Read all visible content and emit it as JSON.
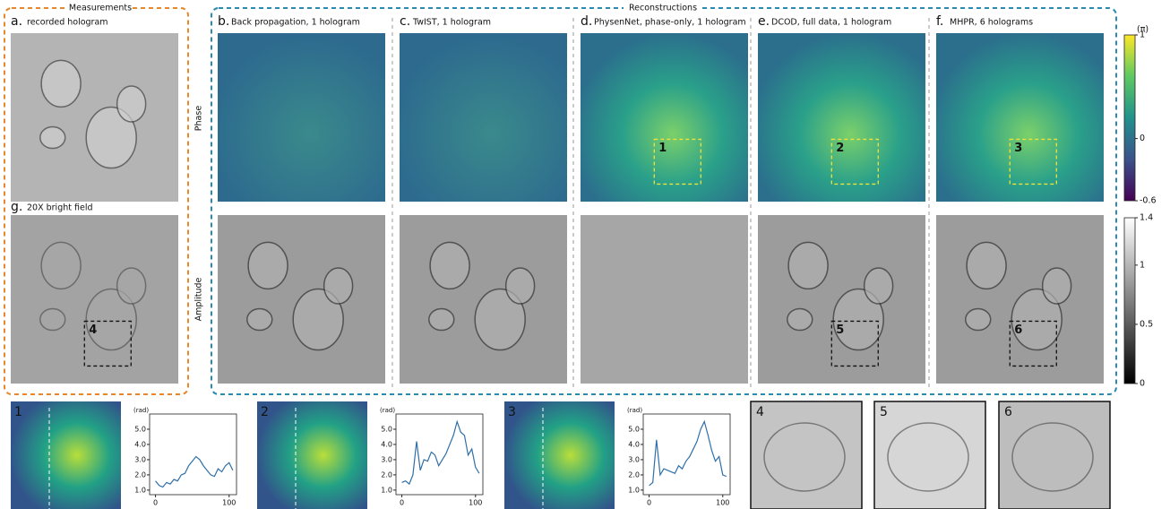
{
  "measurements": {
    "title": "Measurements",
    "panels": [
      {
        "label": "a.",
        "caption": "recorded hologram"
      },
      {
        "label": "g.",
        "caption": "20X bright field",
        "box": "4"
      }
    ]
  },
  "reconstructions": {
    "title": "Reconstructions",
    "row_labels": [
      "Phase",
      "Amplitude"
    ],
    "columns": [
      {
        "label": "b.",
        "caption": "Back propagation, 1 hologram"
      },
      {
        "label": "c.",
        "caption": "TwIST, 1 hologram"
      },
      {
        "label": "d.",
        "caption": "PhysenNet, phase-only, 1 hologram",
        "phase_box": "1"
      },
      {
        "label": "e.",
        "caption": "DCOD, full data, 1 hologram",
        "phase_box": "2",
        "amplitude_box": "5"
      },
      {
        "label": "f.",
        "caption": "MHPR, 6 holograms",
        "phase_box": "3",
        "amplitude_box": "6"
      }
    ]
  },
  "colorbars": [
    {
      "unit": "(π)",
      "lim": [
        -0.6,
        1
      ],
      "ticks": [
        1,
        0,
        -0.6
      ]
    },
    {
      "lim": [
        0,
        1.4
      ],
      "ticks": [
        1.4,
        1,
        0.5,
        0
      ]
    }
  ],
  "profile_insets": [
    {
      "label": "1",
      "chart_data": {
        "type": "line",
        "y_label": "(rad)",
        "xlim": [
          -8,
          110
        ],
        "xticks": [
          0,
          100
        ],
        "ylim": [
          0.7,
          6.0
        ],
        "yticks": [
          {
            "value": 1,
            "label": "1.0"
          },
          {
            "value": 2,
            "label": "2.0"
          },
          {
            "value": 3,
            "label": "3.0"
          },
          {
            "value": 4,
            "label": "4.0"
          },
          {
            "value": 5,
            "label": "5.0"
          }
        ],
        "color": "#2f6fa8",
        "x": [
          0,
          5,
          10,
          15,
          20,
          25,
          30,
          35,
          40,
          45,
          50,
          55,
          60,
          65,
          70,
          75,
          80,
          85,
          90,
          95,
          100,
          105
        ],
        "values": [
          1.6,
          1.3,
          1.2,
          1.5,
          1.4,
          1.7,
          1.6,
          2.0,
          2.1,
          2.6,
          2.9,
          3.2,
          3.0,
          2.6,
          2.3,
          2.0,
          1.9,
          2.4,
          2.2,
          2.6,
          2.8,
          2.3
        ]
      }
    },
    {
      "label": "2",
      "chart_data": {
        "type": "line",
        "y_label": "(rad)",
        "xlim": [
          -8,
          110
        ],
        "xticks": [
          0,
          100
        ],
        "ylim": [
          0.7,
          6.0
        ],
        "yticks": [
          {
            "value": 1,
            "label": "1.0"
          },
          {
            "value": 2,
            "label": "2.0"
          },
          {
            "value": 3,
            "label": "3.0"
          },
          {
            "value": 4,
            "label": "4.0"
          },
          {
            "value": 5,
            "label": "5.0"
          }
        ],
        "color": "#2f6fa8",
        "x": [
          0,
          5,
          10,
          15,
          20,
          25,
          30,
          35,
          40,
          45,
          50,
          55,
          60,
          65,
          70,
          75,
          80,
          85,
          90,
          95,
          100,
          105
        ],
        "values": [
          1.5,
          1.6,
          1.4,
          2.0,
          4.2,
          2.3,
          3.0,
          2.9,
          3.5,
          3.3,
          2.6,
          3.0,
          3.4,
          4.0,
          4.6,
          5.5,
          4.8,
          4.6,
          3.3,
          3.7,
          2.5,
          2.1
        ]
      }
    },
    {
      "label": "3",
      "chart_data": {
        "type": "line",
        "y_label": "(rad)",
        "xlim": [
          -8,
          110
        ],
        "xticks": [
          0,
          100
        ],
        "ylim": [
          0.7,
          6.0
        ],
        "yticks": [
          {
            "value": 1,
            "label": "1.0"
          },
          {
            "value": 2,
            "label": "2.0"
          },
          {
            "value": 3,
            "label": "3.0"
          },
          {
            "value": 4,
            "label": "4.0"
          },
          {
            "value": 5,
            "label": "5.0"
          }
        ],
        "color": "#2f6fa8",
        "x": [
          0,
          5,
          10,
          15,
          20,
          25,
          30,
          35,
          40,
          45,
          50,
          55,
          60,
          65,
          70,
          75,
          80,
          85,
          90,
          95,
          100,
          105
        ],
        "values": [
          1.3,
          1.5,
          4.3,
          2.0,
          2.4,
          2.3,
          2.2,
          2.1,
          2.6,
          2.4,
          2.9,
          3.2,
          3.7,
          4.2,
          5.0,
          5.5,
          4.6,
          3.6,
          2.9,
          3.2,
          2.0,
          1.9
        ]
      }
    }
  ],
  "amplitude_insets": [
    {
      "label": "4"
    },
    {
      "label": "5"
    },
    {
      "label": "6"
    }
  ]
}
